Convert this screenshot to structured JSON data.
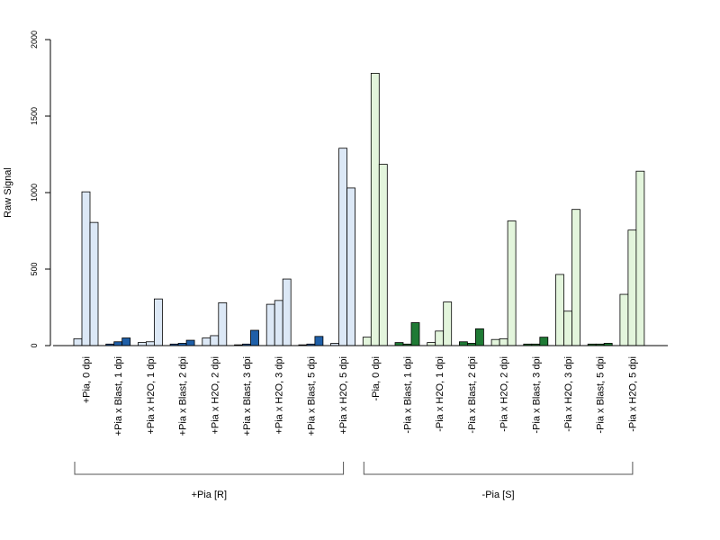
{
  "chart_data": {
    "type": "bar",
    "ylabel": "Raw Signal",
    "ylim": [
      0,
      2000
    ],
    "yticks": [
      0,
      500,
      1000,
      1500,
      2000
    ],
    "categories": [
      "+Pia, 0 dpi",
      "+Pia x Blast, 1 dpi",
      "+Pia x H2O, 1 dpi",
      "+Pia x Blast, 2 dpi",
      "+Pia x H2O, 2 dpi",
      "+Pia x Blast, 3 dpi",
      "+Pia x H2O, 3 dpi",
      "+Pia x Blast, 5 dpi",
      "+Pia x H2O, 5 dpi",
      "-Pia, 0 dpi",
      "-Pia x Blast, 1 dpi",
      "-Pia x H2O, 1 dpi",
      "-Pia x Blast, 2 dpi",
      "-Pia x H2O, 2 dpi",
      "-Pia x Blast, 3 dpi",
      "-Pia x H2O, 3 dpi",
      "-Pia x Blast, 5 dpi",
      "-Pia x H2O, 5 dpi"
    ],
    "values": [
      [
        45,
        1005,
        805
      ],
      [
        10,
        25,
        50
      ],
      [
        20,
        25,
        305
      ],
      [
        10,
        15,
        35
      ],
      [
        50,
        65,
        280
      ],
      [
        5,
        10,
        100
      ],
      [
        270,
        295,
        435
      ],
      [
        5,
        10,
        60
      ],
      [
        15,
        1290,
        1030
      ],
      [
        55,
        1780,
        1185
      ],
      [
        20,
        10,
        150
      ],
      [
        20,
        95,
        285
      ],
      [
        25,
        15,
        110
      ],
      [
        40,
        45,
        815
      ],
      [
        10,
        10,
        55
      ],
      [
        465,
        225,
        890
      ],
      [
        10,
        10,
        15
      ],
      [
        335,
        755,
        1140
      ]
    ],
    "bar_colors": [
      "#dce8f6",
      "#1f5fa8",
      "#dce8f6",
      "#1f5fa8",
      "#dce8f6",
      "#1f5fa8",
      "#dce8f6",
      "#1f5fa8",
      "#dce8f6",
      "#e3f5dc",
      "#1f7a35",
      "#e3f5dc",
      "#1f7a35",
      "#e3f5dc",
      "#1f7a35",
      "#e3f5dc",
      "#1f7a35",
      "#e3f5dc"
    ],
    "groups": [
      {
        "label": "+Pia [R]",
        "start": 0,
        "end": 8
      },
      {
        "label": "-Pia [S]",
        "start": 9,
        "end": 17
      }
    ]
  }
}
